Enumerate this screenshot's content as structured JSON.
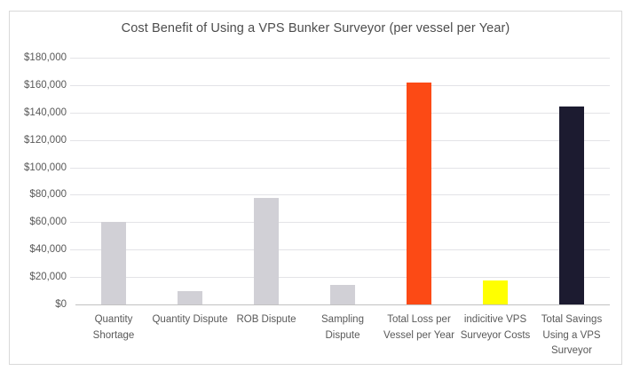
{
  "chart_data": {
    "type": "bar",
    "title": "Cost Benefit of Using a VPS Bunker Surveyor (per vessel per Year)",
    "categories": [
      "Quantity Shortage",
      "Quantity Dispute",
      "ROB Dispute",
      "Sampling Dispute",
      "Total Loss per Vessel per Year",
      "indicitive VPS Surveyor Costs",
      "Total Savings Using a VPS Surveyor"
    ],
    "values": [
      60000,
      10000,
      78000,
      14000,
      162000,
      17500,
      144500
    ],
    "bar_colors": [
      "#D1D0D6",
      "#D1D0D6",
      "#D1D0D6",
      "#D1D0D6",
      "#FC4A15",
      "#FFFF00",
      "#1C1B30"
    ],
    "xlabel": "",
    "ylabel": "",
    "ylim": [
      0,
      180000
    ],
    "ytick_step": 20000,
    "yticks": [
      0,
      20000,
      40000,
      60000,
      80000,
      100000,
      120000,
      140000,
      160000,
      180000
    ],
    "ytick_labels": [
      "$0",
      "$20,000",
      "$40,000",
      "$60,000",
      "$80,000",
      "$100,000",
      "$120,000",
      "$140,000",
      "$160,000",
      "$180,000"
    ],
    "grid": true,
    "legend": false
  },
  "colors": {
    "background": "#FFFFFF",
    "chart_border": "#D9D9D9",
    "gridline": "#E3E3E7",
    "axis_line": "#C2C2C2",
    "tick_label": "#595959",
    "title_text": "#4D4D4D",
    "bar_gray": "#D1D0D6",
    "bar_orange": "#FC4A15",
    "bar_yellow": "#FFFF00",
    "bar_navy": "#1C1B30"
  }
}
